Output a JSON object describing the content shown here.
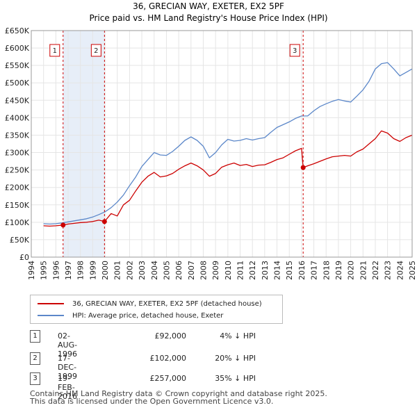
{
  "chart_data": {
    "type": "line",
    "title": "36, GRECIAN WAY, EXETER, EX2 5PF",
    "subtitle": "Price paid vs. HM Land Registry's House Price Index (HPI)",
    "xlim": [
      1994,
      2025
    ],
    "ylim": [
      0,
      650000
    ],
    "y_ticks": [
      0,
      50000,
      100000,
      150000,
      200000,
      250000,
      300000,
      350000,
      400000,
      450000,
      500000,
      550000,
      600000,
      650000
    ],
    "y_tick_labels": [
      "£0",
      "£50K",
      "£100K",
      "£150K",
      "£200K",
      "£250K",
      "£300K",
      "£350K",
      "£400K",
      "£450K",
      "£500K",
      "£550K",
      "£600K",
      "£650K"
    ],
    "x_ticks": [
      1994,
      1995,
      1996,
      1997,
      1998,
      1999,
      2000,
      2001,
      2002,
      2003,
      2004,
      2005,
      2006,
      2007,
      2008,
      2009,
      2010,
      2011,
      2012,
      2013,
      2014,
      2015,
      2016,
      2017,
      2018,
      2019,
      2020,
      2021,
      2022,
      2023,
      2024,
      2025
    ],
    "x_tick_labels": [
      "1994",
      "1995",
      "1996",
      "1997",
      "1998",
      "1999",
      "2000",
      "2001",
      "2002",
      "2003",
      "2004",
      "2005",
      "2006",
      "2007",
      "2008",
      "2009",
      "2010",
      "2011",
      "2012",
      "2013",
      "2014",
      "2015",
      "2016",
      "2017",
      "2018",
      "2019",
      "2020",
      "2021",
      "2022",
      "2023",
      "2024",
      "2025"
    ],
    "shaded_spans": [
      [
        1996.59,
        1999.96
      ]
    ],
    "series": [
      {
        "name": "36, GRECIAN WAY, EXETER, EX2 5PF (detached house)",
        "color": "#cc0000",
        "x": [
          1995.0,
          1995.5,
          1996.0,
          1996.59,
          1997.0,
          1997.5,
          1998.0,
          1998.5,
          1999.0,
          1999.5,
          1999.96,
          2000.5,
          2001.0,
          2001.5,
          2002.0,
          2002.5,
          2003.0,
          2003.5,
          2004.0,
          2004.5,
          2005.0,
          2005.5,
          2006.0,
          2006.5,
          2007.0,
          2007.5,
          2008.0,
          2008.5,
          2009.0,
          2009.5,
          2010.0,
          2010.5,
          2011.0,
          2011.5,
          2012.0,
          2012.5,
          2013.0,
          2013.5,
          2014.0,
          2014.5,
          2015.0,
          2015.5,
          2016.0,
          2016.13,
          2016.5,
          2017.0,
          2017.5,
          2018.0,
          2018.5,
          2019.0,
          2019.5,
          2020.0,
          2020.5,
          2021.0,
          2021.5,
          2022.0,
          2022.5,
          2023.0,
          2023.5,
          2024.0,
          2024.5,
          2025.0
        ],
        "y": [
          90000,
          89000,
          90000,
          92000,
          95000,
          97000,
          99000,
          100000,
          102000,
          106000,
          102000,
          125000,
          118000,
          150000,
          163000,
          190000,
          215000,
          232000,
          243000,
          230000,
          233000,
          240000,
          252000,
          262000,
          270000,
          262000,
          250000,
          232000,
          240000,
          258000,
          265000,
          270000,
          263000,
          266000,
          260000,
          264000,
          265000,
          272000,
          280000,
          285000,
          295000,
          305000,
          312000,
          257000,
          262000,
          268000,
          275000,
          282000,
          288000,
          290000,
          292000,
          290000,
          302000,
          310000,
          325000,
          340000,
          362000,
          356000,
          340000,
          332000,
          343000,
          350000
        ]
      },
      {
        "name": "HPI: Average price, detached house, Exeter",
        "color": "#5b87c9",
        "x": [
          1995.0,
          1995.5,
          1996.0,
          1996.5,
          1997.0,
          1997.5,
          1998.0,
          1998.5,
          1999.0,
          1999.5,
          2000.0,
          2000.5,
          2001.0,
          2001.5,
          2002.0,
          2002.5,
          2003.0,
          2003.5,
          2004.0,
          2004.5,
          2005.0,
          2005.5,
          2006.0,
          2006.5,
          2007.0,
          2007.5,
          2008.0,
          2008.5,
          2009.0,
          2009.5,
          2010.0,
          2010.5,
          2011.0,
          2011.5,
          2012.0,
          2012.5,
          2013.0,
          2013.5,
          2014.0,
          2014.5,
          2015.0,
          2015.5,
          2016.0,
          2016.5,
          2017.0,
          2017.5,
          2018.0,
          2018.5,
          2019.0,
          2019.5,
          2020.0,
          2020.5,
          2021.0,
          2021.5,
          2022.0,
          2022.5,
          2023.0,
          2023.5,
          2024.0,
          2024.5,
          2025.0
        ],
        "y": [
          96000,
          95000,
          96000,
          98000,
          101000,
          104000,
          107000,
          110000,
          115000,
          122000,
          130000,
          142000,
          158000,
          178000,
          205000,
          230000,
          260000,
          280000,
          300000,
          293000,
          292000,
          303000,
          318000,
          335000,
          345000,
          335000,
          318000,
          285000,
          300000,
          322000,
          338000,
          333000,
          335000,
          340000,
          336000,
          340000,
          343000,
          358000,
          372000,
          380000,
          388000,
          398000,
          405000,
          405000,
          420000,
          432000,
          440000,
          447000,
          452000,
          448000,
          445000,
          462000,
          480000,
          505000,
          540000,
          555000,
          558000,
          540000,
          520000,
          530000,
          540000
        ]
      }
    ],
    "transactions": [
      {
        "num": "1",
        "x": 1996.59,
        "y": 92000
      },
      {
        "num": "2",
        "x": 1999.96,
        "y": 102000
      },
      {
        "num": "3",
        "x": 2016.13,
        "y": 257000
      }
    ]
  },
  "legend": {
    "items": [
      {
        "label": "36, GRECIAN WAY, EXETER, EX2 5PF (detached house)",
        "color": "#cc0000"
      },
      {
        "label": "HPI: Average price, detached house, Exeter",
        "color": "#5b87c9"
      }
    ]
  },
  "table": {
    "rows": [
      {
        "num": "1",
        "date": "02-AUG-1996",
        "price": "£92,000",
        "hpi": "4% ↓ HPI"
      },
      {
        "num": "2",
        "date": "17-DEC-1999",
        "price": "£102,000",
        "hpi": "20% ↓ HPI"
      },
      {
        "num": "3",
        "date": "19-FEB-2016",
        "price": "£257,000",
        "hpi": "35% ↓ HPI"
      }
    ]
  },
  "footer": {
    "line1": "Contains HM Land Registry data © Crown copyright and database right 2025.",
    "line2": "This data is licensed under the Open Government Licence v3.0."
  }
}
